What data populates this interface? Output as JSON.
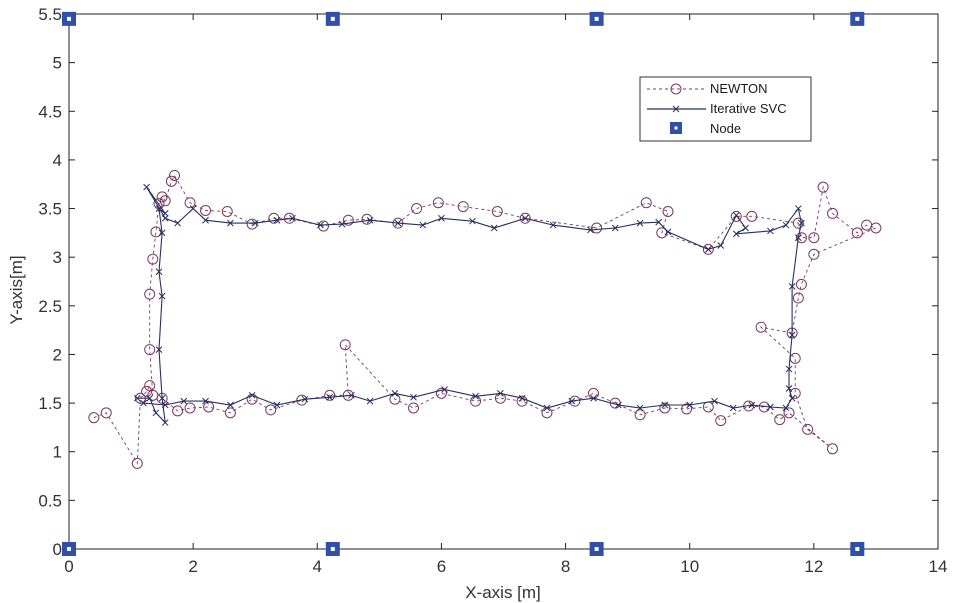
{
  "chart_data": {
    "type": "scatter",
    "xlabel": "X-axis [m]",
    "ylabel": "Y-axis[m]",
    "xlim": [
      0,
      14
    ],
    "ylim": [
      0,
      5.5
    ],
    "xticks": [
      "0",
      "2",
      "4",
      "6",
      "8",
      "10",
      "12",
      "14"
    ],
    "yticks": [
      "0",
      "0.5",
      "1",
      "1.5",
      "2",
      "2.5",
      "3",
      "3.5",
      "4",
      "4.5",
      "5",
      "5.5"
    ],
    "grid": false,
    "legend_position": "top-right",
    "series": [
      {
        "name": "NEWTON",
        "style": "dashed-circle",
        "color": "#7b3a5c",
        "points": [
          [
            0.4,
            1.35
          ],
          [
            0.6,
            1.4
          ],
          [
            1.1,
            0.88
          ],
          [
            1.15,
            1.55
          ],
          [
            1.25,
            1.62
          ],
          [
            1.3,
            1.68
          ],
          [
            1.35,
            1.58
          ],
          [
            1.3,
            2.05
          ],
          [
            1.3,
            2.62
          ],
          [
            1.35,
            2.98
          ],
          [
            1.4,
            3.26
          ],
          [
            1.45,
            3.55
          ],
          [
            1.5,
            3.62
          ],
          [
            1.55,
            3.58
          ],
          [
            1.65,
            3.78
          ],
          [
            1.7,
            3.84
          ],
          [
            1.95,
            3.56
          ],
          [
            2.2,
            3.48
          ],
          [
            2.55,
            3.47
          ],
          [
            2.95,
            3.34
          ],
          [
            3.3,
            3.4
          ],
          [
            3.55,
            3.4
          ],
          [
            4.1,
            3.32
          ],
          [
            4.5,
            3.38
          ],
          [
            4.8,
            3.39
          ],
          [
            5.3,
            3.35
          ],
          [
            5.6,
            3.5
          ],
          [
            5.95,
            3.56
          ],
          [
            6.35,
            3.52
          ],
          [
            6.9,
            3.47
          ],
          [
            7.35,
            3.4
          ],
          [
            8.5,
            3.3
          ],
          [
            9.3,
            3.56
          ],
          [
            9.65,
            3.47
          ],
          [
            9.55,
            3.25
          ],
          [
            10.3,
            3.08
          ],
          [
            10.75,
            3.42
          ],
          [
            11.0,
            3.42
          ],
          [
            11.75,
            3.35
          ],
          [
            11.8,
            3.2
          ],
          [
            12.0,
            3.2
          ],
          [
            12.15,
            3.72
          ],
          [
            12.3,
            3.45
          ],
          [
            12.7,
            3.25
          ],
          [
            12.85,
            3.33
          ],
          [
            13.0,
            3.3
          ],
          [
            12.0,
            3.03
          ],
          [
            11.8,
            2.72
          ],
          [
            11.75,
            2.58
          ],
          [
            11.65,
            2.22
          ],
          [
            11.15,
            2.28
          ],
          [
            11.7,
            1.96
          ],
          [
            11.7,
            1.6
          ],
          [
            11.9,
            1.23
          ],
          [
            12.3,
            1.03
          ],
          [
            11.6,
            1.4
          ],
          [
            11.45,
            1.33
          ],
          [
            11.2,
            1.46
          ],
          [
            10.95,
            1.47
          ],
          [
            10.5,
            1.32
          ],
          [
            10.3,
            1.46
          ],
          [
            9.95,
            1.44
          ],
          [
            9.6,
            1.45
          ],
          [
            9.2,
            1.38
          ],
          [
            8.8,
            1.5
          ],
          [
            8.45,
            1.6
          ],
          [
            8.15,
            1.52
          ],
          [
            7.7,
            1.4
          ],
          [
            7.3,
            1.52
          ],
          [
            6.95,
            1.55
          ],
          [
            6.55,
            1.52
          ],
          [
            6.0,
            1.6
          ],
          [
            5.55,
            1.45
          ],
          [
            5.25,
            1.54
          ],
          [
            4.45,
            2.1
          ],
          [
            4.5,
            1.58
          ],
          [
            4.2,
            1.58
          ],
          [
            3.75,
            1.53
          ],
          [
            3.25,
            1.43
          ],
          [
            2.95,
            1.54
          ],
          [
            2.6,
            1.4
          ],
          [
            2.25,
            1.46
          ],
          [
            1.95,
            1.45
          ],
          [
            1.75,
            1.42
          ],
          [
            1.5,
            1.55
          ]
        ]
      },
      {
        "name": "Iterative SVC",
        "style": "solid-x",
        "color": "#26305f",
        "points": [
          [
            1.1,
            1.55
          ],
          [
            1.3,
            1.55
          ],
          [
            1.4,
            1.4
          ],
          [
            1.55,
            1.3
          ],
          [
            1.5,
            1.55
          ],
          [
            1.45,
            2.05
          ],
          [
            1.5,
            2.6
          ],
          [
            1.45,
            2.85
          ],
          [
            1.5,
            3.25
          ],
          [
            1.45,
            3.5
          ],
          [
            1.55,
            3.45
          ],
          [
            1.25,
            3.72
          ],
          [
            1.55,
            3.4
          ],
          [
            1.75,
            3.35
          ],
          [
            2.0,
            3.5
          ],
          [
            2.2,
            3.38
          ],
          [
            2.6,
            3.35
          ],
          [
            3.0,
            3.35
          ],
          [
            3.35,
            3.38
          ],
          [
            3.6,
            3.4
          ],
          [
            4.05,
            3.33
          ],
          [
            4.4,
            3.34
          ],
          [
            4.85,
            3.38
          ],
          [
            5.3,
            3.35
          ],
          [
            5.7,
            3.33
          ],
          [
            6.0,
            3.4
          ],
          [
            6.5,
            3.37
          ],
          [
            6.85,
            3.3
          ],
          [
            7.35,
            3.4
          ],
          [
            7.8,
            3.33
          ],
          [
            8.4,
            3.28
          ],
          [
            8.8,
            3.3
          ],
          [
            9.2,
            3.35
          ],
          [
            9.5,
            3.36
          ],
          [
            9.65,
            3.26
          ],
          [
            10.3,
            3.08
          ],
          [
            10.5,
            3.12
          ],
          [
            10.75,
            3.43
          ],
          [
            10.9,
            3.3
          ],
          [
            10.75,
            3.24
          ],
          [
            11.3,
            3.27
          ],
          [
            11.55,
            3.33
          ],
          [
            11.75,
            3.5
          ],
          [
            11.8,
            3.35
          ],
          [
            11.75,
            3.2
          ],
          [
            11.65,
            2.7
          ],
          [
            11.65,
            2.2
          ],
          [
            11.6,
            1.85
          ],
          [
            11.6,
            1.65
          ],
          [
            11.65,
            1.55
          ],
          [
            11.55,
            1.45
          ],
          [
            11.3,
            1.46
          ],
          [
            11.0,
            1.48
          ],
          [
            10.7,
            1.45
          ],
          [
            10.4,
            1.52
          ],
          [
            10.0,
            1.48
          ],
          [
            9.6,
            1.48
          ],
          [
            9.2,
            1.45
          ],
          [
            8.85,
            1.48
          ],
          [
            8.45,
            1.55
          ],
          [
            8.1,
            1.52
          ],
          [
            7.7,
            1.45
          ],
          [
            7.3,
            1.55
          ],
          [
            6.95,
            1.6
          ],
          [
            6.55,
            1.57
          ],
          [
            6.05,
            1.64
          ],
          [
            5.55,
            1.56
          ],
          [
            5.25,
            1.6
          ],
          [
            4.85,
            1.52
          ],
          [
            4.55,
            1.58
          ],
          [
            4.2,
            1.56
          ],
          [
            3.8,
            1.54
          ],
          [
            3.35,
            1.48
          ],
          [
            2.95,
            1.58
          ],
          [
            2.6,
            1.48
          ],
          [
            2.2,
            1.52
          ],
          [
            1.85,
            1.52
          ],
          [
            1.55,
            1.48
          ],
          [
            1.2,
            1.5
          ]
        ]
      },
      {
        "name": "Node",
        "style": "square",
        "color": "#2f4fa8",
        "points": [
          [
            0,
            5.45
          ],
          [
            4.25,
            5.45
          ],
          [
            8.5,
            5.45
          ],
          [
            12.7,
            5.45
          ],
          [
            0,
            0
          ],
          [
            4.25,
            0
          ],
          [
            8.5,
            0
          ],
          [
            12.7,
            0
          ]
        ]
      }
    ]
  }
}
